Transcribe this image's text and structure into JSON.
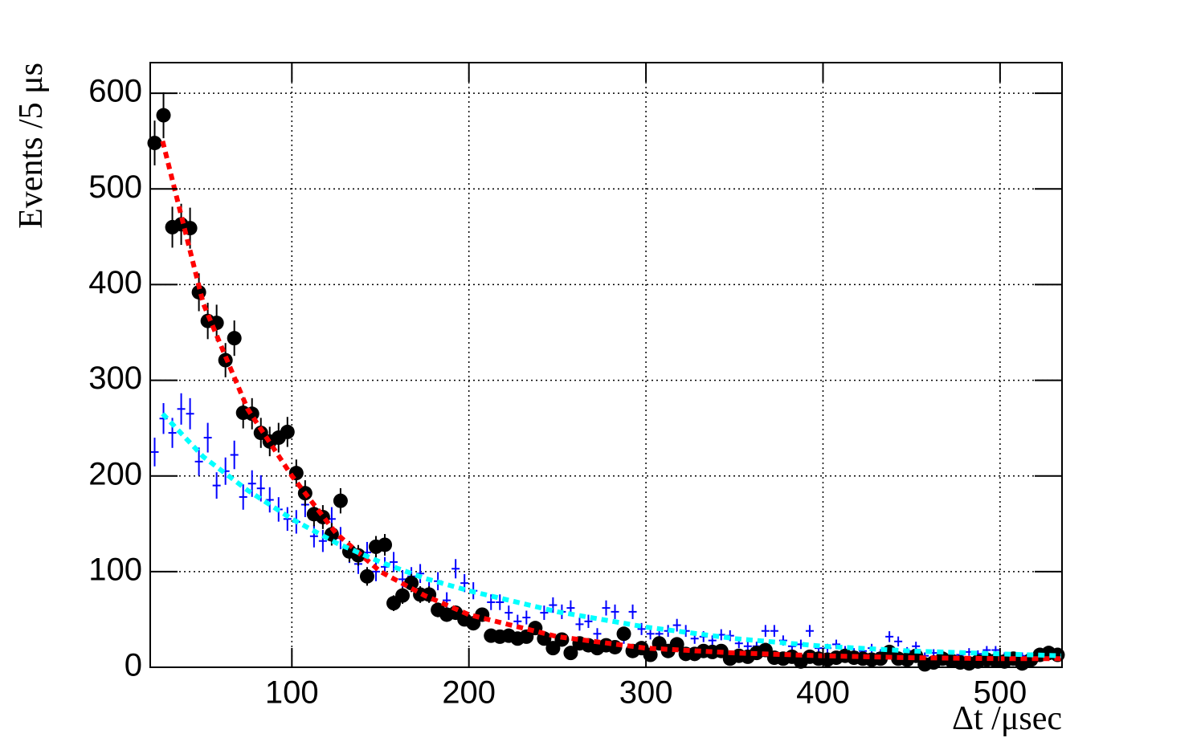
{
  "chart_data": {
    "type": "errorbar",
    "x_label": "Δt /μsec",
    "y_label": "Events /5 μs",
    "xlim": [
      20,
      535
    ],
    "ylim": [
      0,
      632
    ],
    "xticks": [
      100,
      200,
      300,
      400,
      500
    ],
    "yticks": [
      0,
      100,
      200,
      300,
      400,
      500,
      600
    ],
    "grid": true,
    "x": [
      22.5,
      27.5,
      32.5,
      37.5,
      42.5,
      47.5,
      52.5,
      57.5,
      62.5,
      67.5,
      72.5,
      77.5,
      82.5,
      87.5,
      92.5,
      97.5,
      102.5,
      107.5,
      112.5,
      117.5,
      122.5,
      127.5,
      132.5,
      137.5,
      142.5,
      147.5,
      152.5,
      157.5,
      162.5,
      167.5,
      172.5,
      177.5,
      182.5,
      187.5,
      192.5,
      197.5,
      202.5,
      207.5,
      212.5,
      217.5,
      222.5,
      227.5,
      232.5,
      237.5,
      242.5,
      247.5,
      252.5,
      257.5,
      262.5,
      267.5,
      272.5,
      277.5,
      282.5,
      287.5,
      292.5,
      297.5,
      302.5,
      307.5,
      312.5,
      317.5,
      322.5,
      327.5,
      332.5,
      337.5,
      342.5,
      347.5,
      352.5,
      357.5,
      362.5,
      367.5,
      372.5,
      377.5,
      382.5,
      387.5,
      392.5,
      397.5,
      402.5,
      407.5,
      412.5,
      417.5,
      422.5,
      427.5,
      432.5,
      437.5,
      442.5,
      447.5,
      452.5,
      457.5,
      462.5,
      467.5,
      472.5,
      477.5,
      482.5,
      487.5,
      492.5,
      497.5,
      502.5,
      507.5,
      512.5,
      517.5,
      522.5,
      527.5,
      532.5
    ],
    "series": [
      {
        "color": "#000000",
        "marker": "circle",
        "values": [
          548,
          577,
          460,
          463,
          459,
          392,
          362,
          360,
          321,
          344,
          266,
          265,
          245,
          236,
          240,
          246,
          203,
          182,
          160,
          157,
          139,
          174,
          121,
          117,
          95,
          126,
          128,
          67,
          75,
          88,
          76,
          76,
          60,
          55,
          57,
          50,
          46,
          55,
          33,
          32,
          33,
          30,
          32,
          41,
          30,
          20,
          29,
          15,
          25,
          23,
          20,
          23,
          21,
          35,
          17,
          20,
          13,
          25,
          17,
          24,
          14,
          14,
          17,
          16,
          17,
          9,
          12,
          11,
          15,
          18,
          10,
          9,
          11,
          6,
          11,
          9,
          8,
          10,
          12,
          10,
          9,
          8,
          9,
          16,
          9,
          8,
          12,
          3,
          5,
          9,
          7,
          5,
          4,
          6,
          8,
          7,
          6,
          9,
          4,
          8,
          13,
          15,
          13
        ],
        "errors": [
          23.4,
          24,
          21.4,
          21.5,
          21.4,
          19.8,
          19,
          19,
          17.9,
          18.5,
          16.3,
          16.3,
          15.7,
          15.4,
          15.5,
          15.7,
          14.2,
          13.5,
          12.6,
          12.5,
          11.8,
          13.2,
          11,
          10.8,
          9.7,
          11.2,
          11.3,
          8.2,
          8.7,
          9.4,
          8.7,
          8.7,
          7.7,
          7.4,
          7.5,
          7.1,
          6.8,
          7.4,
          5.7,
          5.7,
          5.7,
          5.5,
          5.7,
          6.4,
          5.5,
          4.5,
          5.4,
          3.9,
          5,
          4.8,
          4.5,
          4.8,
          4.6,
          5.9,
          4.1,
          4.5,
          3.6,
          5,
          4.1,
          4.9,
          3.7,
          3.7,
          4.1,
          4,
          4.1,
          3,
          3.5,
          3.3,
          3.9,
          4.2,
          3.2,
          3,
          3.3,
          2.4,
          3.3,
          3,
          2.8,
          3.2,
          3.5,
          3.2,
          3,
          2.8,
          3,
          4,
          3,
          2.8,
          3.5,
          1.7,
          2.2,
          3,
          2.6,
          2.2,
          2,
          2.4,
          2.8,
          2.6,
          2.4,
          3,
          2,
          2.8,
          3.6,
          3.9,
          3.6
        ]
      },
      {
        "color": "#0000ff",
        "marker": "cross",
        "values": [
          225,
          260,
          245,
          270,
          265,
          215,
          240,
          190,
          205,
          222,
          178,
          192,
          187,
          175,
          165,
          155,
          152,
          170,
          137,
          132,
          155,
          135,
          120,
          108,
          120,
          100,
          105,
          110,
          92,
          95,
          98,
          80,
          90,
          70,
          103,
          88,
          80,
          55,
          68,
          68,
          57,
          48,
          52,
          40,
          57,
          65,
          58,
          62,
          45,
          48,
          35,
          62,
          58,
          30,
          58,
          40,
          35,
          35,
          38,
          44,
          38,
          30,
          32,
          28,
          34,
          33,
          25,
          22,
          22,
          38,
          38,
          28,
          22,
          24,
          38,
          20,
          20,
          24,
          18,
          16,
          17,
          20,
          15,
          32,
          27,
          17,
          22,
          12,
          15,
          14,
          12,
          13,
          16,
          14,
          18,
          18,
          12,
          10,
          12,
          12,
          14,
          14,
          14
        ],
        "errors": [
          15,
          16.1,
          15.7,
          16.4,
          16.3,
          14.7,
          15.5,
          13.8,
          14.3,
          14.9,
          13.3,
          13.9,
          13.7,
          13.2,
          12.8,
          12.4,
          12.3,
          13,
          11.7,
          11.5,
          12.4,
          11.6,
          11,
          10.4,
          11,
          10,
          10.2,
          10.5,
          9.6,
          9.7,
          9.9,
          8.9,
          9.5,
          8.4,
          10.1,
          9.4,
          8.9,
          7.4,
          8.2,
          8.2,
          7.5,
          6.9,
          7.2,
          6.3,
          7.5,
          8.1,
          7.6,
          7.9,
          6.7,
          6.9,
          5.9,
          7.9,
          7.6,
          5.5,
          7.6,
          6.3,
          5.9,
          5.9,
          6.2,
          6.6,
          6.2,
          5.5,
          5.7,
          5.3,
          5.8,
          5.7,
          5,
          4.7,
          4.7,
          6.2,
          6.2,
          5.3,
          4.7,
          4.9,
          6.2,
          4.5,
          4.5,
          4.9,
          4.2,
          4,
          4.1,
          4.5,
          3.9,
          5.7,
          5.2,
          4.1,
          4.7,
          3.5,
          3.9,
          3.7,
          3.5,
          3.6,
          4,
          3.7,
          4.2,
          4.2,
          3.5,
          3.2,
          3.5,
          3.5,
          3.7,
          3.7,
          3.7
        ]
      }
    ],
    "fits": [
      {
        "color": "#ff0000",
        "x": [
          27,
          50,
          75,
          100,
          125,
          150,
          175,
          200,
          250,
          300,
          350,
          400,
          450,
          500,
          535
        ],
        "values": [
          550,
          380,
          270,
          200,
          140,
          100,
          75,
          55,
          32,
          20,
          15,
          12,
          10,
          9,
          9
        ]
      },
      {
        "color": "#00ffff",
        "x": [
          27,
          50,
          75,
          100,
          125,
          150,
          175,
          200,
          250,
          300,
          350,
          400,
          450,
          500,
          535
        ],
        "values": [
          265,
          220,
          185,
          155,
          130,
          110,
          93,
          80,
          58,
          42,
          30,
          22,
          17,
          14,
          12
        ]
      }
    ]
  }
}
